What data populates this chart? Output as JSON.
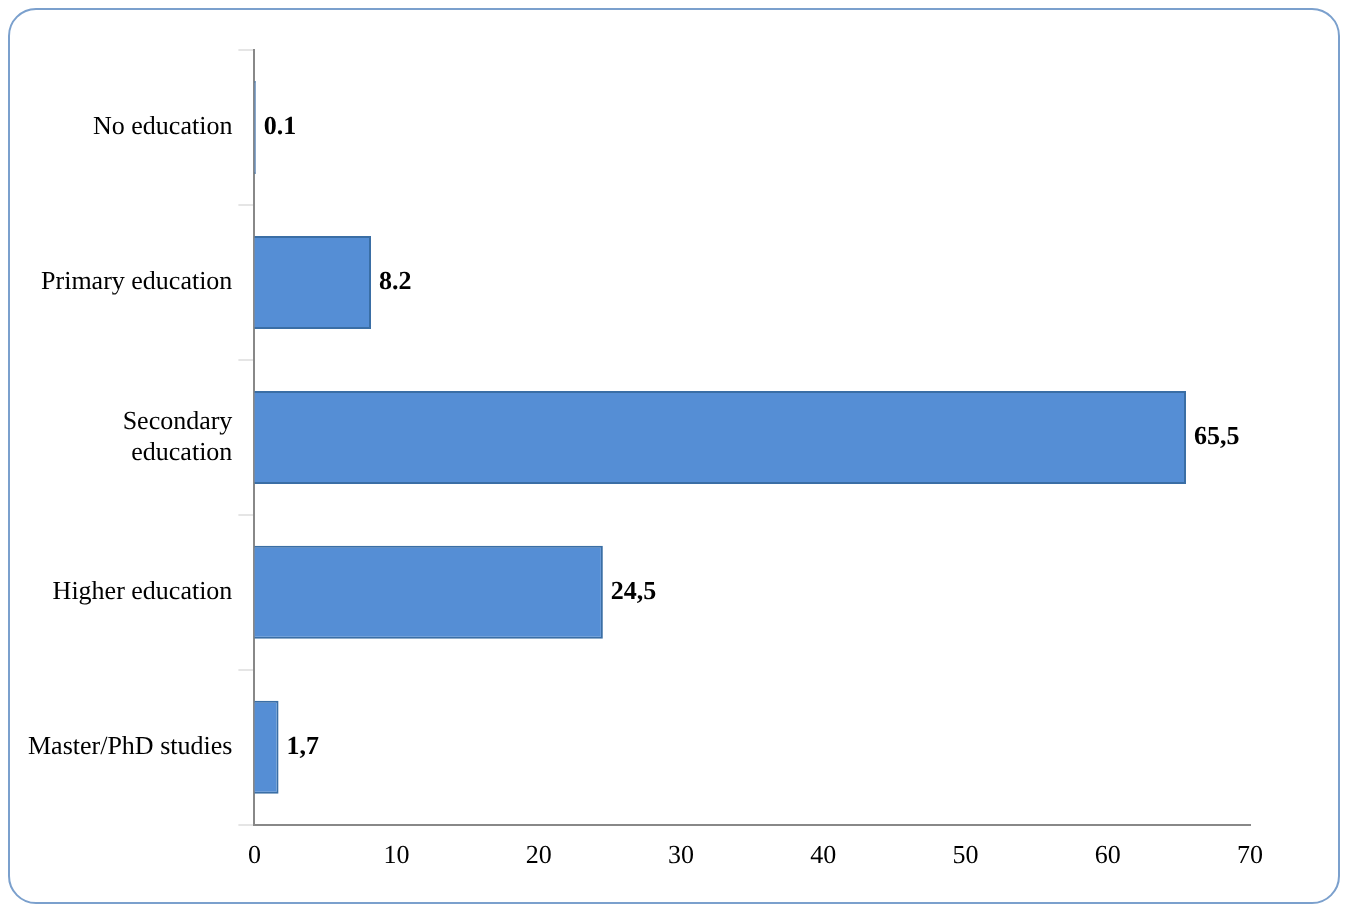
{
  "chart_data": {
    "type": "bar",
    "orientation": "horizontal",
    "categories": [
      "No education",
      "Primary education",
      "Secondary education",
      "Higher education",
      "Master/PhD studies"
    ],
    "values": [
      0.1,
      8.2,
      65.5,
      24.5,
      1.7
    ],
    "value_labels": [
      "0.1",
      "8.2",
      "65,5",
      "24,5",
      "1,7"
    ],
    "color": "#558ed5",
    "xlim": [
      0,
      70
    ],
    "xticks": [
      0,
      10,
      20,
      30,
      40,
      50,
      60,
      70
    ],
    "grid": false,
    "legend": false
  }
}
